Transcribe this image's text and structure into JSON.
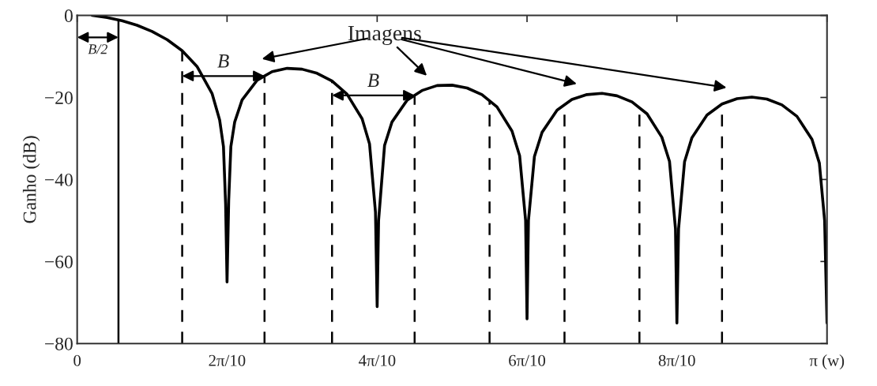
{
  "chart_data": {
    "type": "line",
    "ylabel": "Ganho (dB)",
    "xlim": [
      0,
      3.142
    ],
    "ylim": [
      -80,
      0
    ],
    "xticks": [
      0,
      {
        "value": 0.628,
        "label": "2π/10"
      },
      {
        "value": 1.257,
        "label": "4π/10"
      },
      {
        "value": 1.885,
        "label": "6π/10"
      },
      {
        "value": 2.513,
        "label": "8π/10"
      },
      {
        "value": 3.142,
        "label": "π (w)"
      }
    ],
    "yticks": [
      {
        "value": 0,
        "label": "0"
      },
      {
        "value": -20,
        "label": "−20"
      },
      {
        "value": -40,
        "label": "−40"
      },
      {
        "value": -60,
        "label": "−60"
      },
      {
        "value": -80,
        "label": "−80"
      }
    ],
    "grid": false,
    "marker": "none",
    "line_style": "solid",
    "series": [
      {
        "color": "#000000",
        "x": [
          0.063,
          0.126,
          0.188,
          0.251,
          0.314,
          0.377,
          0.44,
          0.503,
          0.565,
          0.597,
          0.613,
          0.622,
          0.628,
          0.635,
          0.644,
          0.66,
          0.691,
          0.754,
          0.817,
          0.88,
          0.942,
          1.005,
          1.068,
          1.131,
          1.194,
          1.225,
          1.25,
          1.257,
          1.263,
          1.288,
          1.319,
          1.382,
          1.445,
          1.508,
          1.571,
          1.634,
          1.696,
          1.759,
          1.822,
          1.854,
          1.879,
          1.885,
          1.891,
          1.916,
          1.948,
          2.011,
          2.073,
          2.136,
          2.199,
          2.262,
          2.325,
          2.388,
          2.45,
          2.482,
          2.507,
          2.513,
          2.52,
          2.545,
          2.576,
          2.639,
          2.702,
          2.765,
          2.827,
          2.89,
          2.953,
          3.016,
          3.079,
          3.11,
          3.132,
          3.142
        ],
        "values": [
          0,
          -0.5,
          -1.3,
          -2.4,
          -3.9,
          -5.9,
          -8.6,
          -12.5,
          -19,
          -25.5,
          -32,
          -46,
          -65,
          -45,
          -32,
          -26,
          -20.6,
          -15.8,
          -13.7,
          -12.9,
          -13.1,
          -14.1,
          -16,
          -19.2,
          -25.2,
          -31.3,
          -48,
          -71,
          -50,
          -31.7,
          -26,
          -20.7,
          -18.3,
          -17.1,
          -17,
          -17.7,
          -19.3,
          -22.3,
          -28.2,
          -34.2,
          -50,
          -74,
          -50,
          -34.4,
          -28.5,
          -23.1,
          -20.5,
          -19.3,
          -19,
          -19.6,
          -21.1,
          -24,
          -29.7,
          -35.6,
          -52,
          -75,
          -52,
          -35.7,
          -29.8,
          -24.3,
          -21.6,
          -20.3,
          -19.9,
          -20.4,
          -21.8,
          -24.6,
          -30.2,
          -36,
          -50,
          -75
        ]
      }
    ],
    "ref_lines": [
      {
        "axis": "x",
        "value": 0.173,
        "line_style": "solid",
        "color": "#000000"
      },
      {
        "axis": "x",
        "value": 0.44,
        "line_style": "dashed",
        "color": "#000000"
      },
      {
        "axis": "x",
        "value": 0.785,
        "line_style": "dashed",
        "color": "#000000"
      },
      {
        "axis": "x",
        "value": 1.068,
        "line_style": "dashed",
        "color": "#000000"
      },
      {
        "axis": "x",
        "value": 1.414,
        "line_style": "dashed",
        "color": "#000000"
      },
      {
        "axis": "x",
        "value": 1.728,
        "line_style": "dashed",
        "color": "#000000"
      },
      {
        "axis": "x",
        "value": 2.042,
        "line_style": "dashed",
        "color": "#000000"
      },
      {
        "axis": "x",
        "value": 2.356,
        "line_style": "dashed",
        "color": "#000000"
      },
      {
        "axis": "x",
        "value": 2.702,
        "line_style": "dashed",
        "color": "#000000"
      }
    ],
    "annotations": [
      "Imagens",
      "B/2",
      "B",
      "B"
    ]
  }
}
